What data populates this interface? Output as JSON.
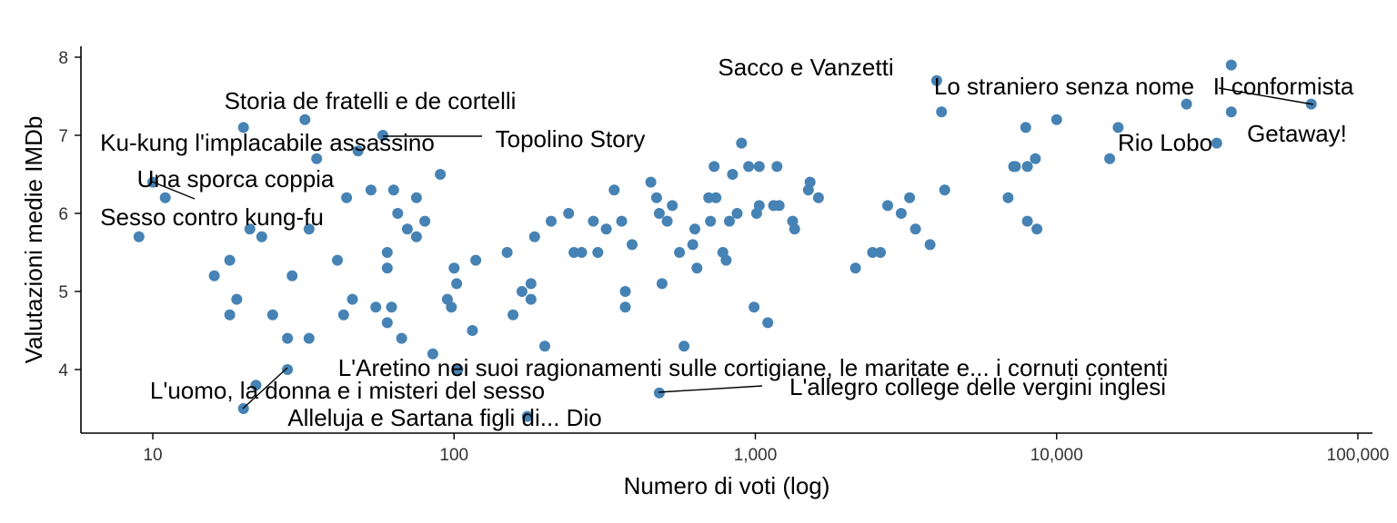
{
  "chart_data": {
    "type": "scatter",
    "title": "",
    "xlabel": "Numero di voti (log)",
    "ylabel": "Valutazioni medie IMDb",
    "xscale": "log10",
    "xlim": [
      6,
      100000
    ],
    "ylim": [
      3.2,
      8.1
    ],
    "xticks": [
      {
        "value": 10,
        "label": "10"
      },
      {
        "value": 100,
        "label": "100"
      },
      {
        "value": 1000,
        "label": "1,000"
      },
      {
        "value": 10000,
        "label": "10,000"
      },
      {
        "value": 100000,
        "label": "100,000"
      }
    ],
    "yticks": [
      {
        "value": 4,
        "label": "4"
      },
      {
        "value": 5,
        "label": "5"
      },
      {
        "value": 6,
        "label": "6"
      },
      {
        "value": 7,
        "label": "7"
      },
      {
        "value": 8,
        "label": "8"
      }
    ],
    "point_color": "#4682B4",
    "points": [
      [
        9,
        5.7
      ],
      [
        10,
        6.4
      ],
      [
        11,
        6.2
      ],
      [
        16,
        5.2
      ],
      [
        18,
        5.4
      ],
      [
        18,
        4.7
      ],
      [
        19,
        4.9
      ],
      [
        20,
        7.1
      ],
      [
        20,
        3.5
      ],
      [
        21,
        5.8
      ],
      [
        22,
        3.8
      ],
      [
        23,
        5.7
      ],
      [
        25,
        4.7
      ],
      [
        28,
        4.4
      ],
      [
        28,
        4.0
      ],
      [
        29,
        5.2
      ],
      [
        32,
        7.2
      ],
      [
        33,
        5.8
      ],
      [
        33,
        4.4
      ],
      [
        35,
        6.7
      ],
      [
        41,
        5.4
      ],
      [
        43,
        4.7
      ],
      [
        44,
        6.2
      ],
      [
        46,
        4.9
      ],
      [
        48,
        6.8
      ],
      [
        53,
        6.3
      ],
      [
        55,
        4.8
      ],
      [
        58,
        7.0
      ],
      [
        60,
        5.5
      ],
      [
        60,
        5.3
      ],
      [
        60,
        4.6
      ],
      [
        62,
        4.8
      ],
      [
        63,
        6.3
      ],
      [
        65,
        6.0
      ],
      [
        67,
        4.4
      ],
      [
        70,
        5.8
      ],
      [
        75,
        6.2
      ],
      [
        75,
        5.7
      ],
      [
        80,
        5.9
      ],
      [
        85,
        4.2
      ],
      [
        90,
        6.5
      ],
      [
        95,
        4.9
      ],
      [
        98,
        4.8
      ],
      [
        100,
        5.3
      ],
      [
        102,
        5.1
      ],
      [
        103,
        4.0
      ],
      [
        115,
        4.5
      ],
      [
        118,
        5.4
      ],
      [
        150,
        5.5
      ],
      [
        157,
        4.7
      ],
      [
        168,
        5.0
      ],
      [
        175,
        3.4
      ],
      [
        180,
        5.1
      ],
      [
        180,
        4.9
      ],
      [
        185,
        5.7
      ],
      [
        200,
        4.3
      ],
      [
        210,
        5.9
      ],
      [
        240,
        6.0
      ],
      [
        250,
        5.5
      ],
      [
        265,
        5.5
      ],
      [
        290,
        5.9
      ],
      [
        300,
        5.5
      ],
      [
        320,
        5.8
      ],
      [
        340,
        6.3
      ],
      [
        360,
        5.9
      ],
      [
        370,
        5.0
      ],
      [
        370,
        4.8
      ],
      [
        390,
        5.6
      ],
      [
        450,
        6.4
      ],
      [
        470,
        6.2
      ],
      [
        480,
        3.7
      ],
      [
        480,
        6.0
      ],
      [
        490,
        5.1
      ],
      [
        510,
        5.9
      ],
      [
        530,
        6.1
      ],
      [
        560,
        5.5
      ],
      [
        580,
        4.3
      ],
      [
        620,
        5.6
      ],
      [
        630,
        5.8
      ],
      [
        640,
        5.3
      ],
      [
        700,
        6.2
      ],
      [
        710,
        5.9
      ],
      [
        730,
        6.6
      ],
      [
        740,
        6.2
      ],
      [
        780,
        5.5
      ],
      [
        800,
        5.4
      ],
      [
        820,
        5.9
      ],
      [
        840,
        6.5
      ],
      [
        870,
        6.0
      ],
      [
        900,
        6.9
      ],
      [
        950,
        6.6
      ],
      [
        990,
        4.8
      ],
      [
        1010,
        6.0
      ],
      [
        1030,
        6.1
      ],
      [
        1030,
        6.6
      ],
      [
        1100,
        4.6
      ],
      [
        1150,
        6.1
      ],
      [
        1180,
        6.6
      ],
      [
        1200,
        6.1
      ],
      [
        1330,
        5.9
      ],
      [
        1350,
        5.8
      ],
      [
        1500,
        6.3
      ],
      [
        1520,
        6.4
      ],
      [
        1620,
        6.2
      ],
      [
        2150,
        5.3
      ],
      [
        2450,
        5.5
      ],
      [
        2600,
        5.5
      ],
      [
        2750,
        6.1
      ],
      [
        3050,
        6.0
      ],
      [
        3250,
        6.2
      ],
      [
        3400,
        5.8
      ],
      [
        3800,
        5.6
      ],
      [
        4000,
        7.7
      ],
      [
        4150,
        7.3
      ],
      [
        4250,
        6.3
      ],
      [
        6900,
        6.2
      ],
      [
        7200,
        6.6
      ],
      [
        7300,
        6.6
      ],
      [
        7900,
        7.1
      ],
      [
        8000,
        5.9
      ],
      [
        8000,
        6.6
      ],
      [
        8500,
        6.7
      ],
      [
        8600,
        5.8
      ],
      [
        10000,
        7.2
      ],
      [
        15000,
        6.7
      ],
      [
        16000,
        7.1
      ],
      [
        27000,
        7.4
      ],
      [
        34000,
        6.9
      ],
      [
        38000,
        7.9
      ],
      [
        38000,
        7.3
      ],
      [
        70000,
        7.4
      ]
    ],
    "annotations": [
      {
        "text": "Sacco e Vanzetti",
        "x": 4000,
        "y": 7.7
      },
      {
        "text": "Lo straniero senza nome",
        "x": 4150,
        "y": 7.3
      },
      {
        "text": "Il conformista",
        "x": 38000,
        "y": 7.9
      },
      {
        "text": "Getaway!",
        "x": 70000,
        "y": 7.4
      },
      {
        "text": "Rio Lobo",
        "x": 34000,
        "y": 6.9
      },
      {
        "text": "Storia de fratelli e de cortelli",
        "x": 32,
        "y": 7.2
      },
      {
        "text": "Topolino Story",
        "x": 58,
        "y": 7.0
      },
      {
        "text": "Ku-kung l'implacabile assassino",
        "x": 20,
        "y": 7.1
      },
      {
        "text": "Una sporca coppia",
        "x": 10,
        "y": 6.4
      },
      {
        "text": "Sesso contro kung-fu",
        "x": 9,
        "y": 5.7
      },
      {
        "text": "L'Aretino nei suoi ragionamenti sulle cortigiane, le maritate e... i cornuti contenti",
        "x": 28,
        "y": 4.0
      },
      {
        "text": "L'allegro college delle vergini inglesi",
        "x": 480,
        "y": 3.7
      },
      {
        "text": "L'uomo, la donna e i misteri del sesso",
        "x": 22,
        "y": 3.8
      },
      {
        "text": "Alleluja e Sartana figli di... Dio",
        "x": 175,
        "y": 3.4
      }
    ]
  }
}
